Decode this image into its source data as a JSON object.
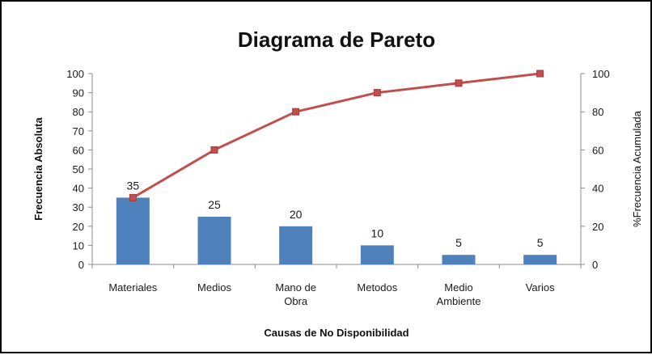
{
  "chart_data": {
    "type": "bar",
    "title": "Diagrama de Pareto",
    "xlabel": "Causas de No Disponibilidad",
    "ylabel": "Frecuencia Absoluta",
    "y2label": "%Frecuencia Acumulada",
    "categories": [
      [
        "Materiales"
      ],
      [
        "Medios"
      ],
      [
        "Mano de",
        "Obra"
      ],
      [
        "Metodos"
      ],
      [
        "Medio",
        "Ambiente"
      ],
      [
        "Varios"
      ]
    ],
    "ylim": [
      0,
      100
    ],
    "y_ticks": [
      "0",
      "10",
      "20",
      "30",
      "40",
      "50",
      "60",
      "70",
      "80",
      "90",
      "100"
    ],
    "y2lim": [
      0,
      100
    ],
    "y2_ticks": [
      "0",
      "20",
      "40",
      "60",
      "80",
      "100"
    ],
    "grid": false,
    "legend": "none",
    "series": [
      {
        "type": "bar",
        "axis": "left",
        "values": [
          35,
          25,
          20,
          10,
          5,
          5
        ],
        "data_labels": [
          "35",
          "25",
          "20",
          "10",
          "5",
          "5"
        ],
        "color": "#4f81bd"
      },
      {
        "type": "line",
        "axis": "right",
        "values": [
          35,
          60,
          80,
          90,
          95,
          100
        ],
        "color": "#c0504d",
        "marker": "square"
      }
    ]
  }
}
